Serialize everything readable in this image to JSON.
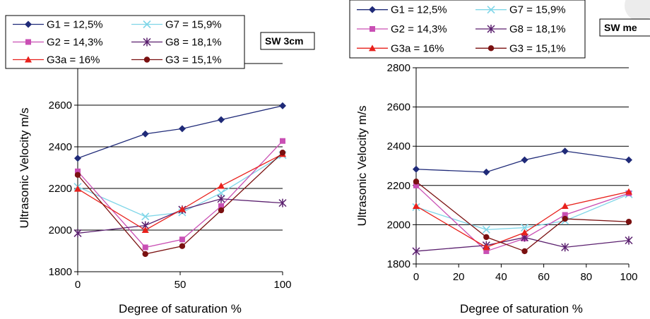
{
  "colors": {
    "G1": "#1f2a78",
    "G2": "#c94fb4",
    "G3a": "#e8211c",
    "G7": "#7fd6e8",
    "G8": "#5a1f6e",
    "G3": "#7a1010"
  },
  "chart_data": [
    {
      "type": "line",
      "tag": "SW 3cm",
      "xlabel": "Degree of saturation %",
      "ylabel": "Ultrasonic Velocity m/s",
      "xlim": [
        0,
        100
      ],
      "ylim": [
        1800,
        2800
      ],
      "xticks": [
        0,
        50,
        100
      ],
      "yticks": [
        1800,
        2000,
        2200,
        2400,
        2600
      ],
      "legend_position": "top-left",
      "grid": "horizontal",
      "series": [
        {
          "name": "G1 = 12,5%",
          "marker": "diamond",
          "color_key": "G1",
          "x": [
            0,
            33,
            51,
            70,
            100
          ],
          "y": [
            2345,
            2462,
            2487,
            2530,
            2597
          ]
        },
        {
          "name": "G7 = 15,9%",
          "marker": "x",
          "color_key": "G7",
          "x": [
            0,
            33,
            51,
            70,
            100
          ],
          "y": [
            2208,
            2065,
            2085,
            2178,
            2360
          ]
        },
        {
          "name": "G2 = 14,3%",
          "marker": "square",
          "color_key": "G2",
          "x": [
            0,
            33,
            51,
            70,
            100
          ],
          "y": [
            2282,
            1917,
            1955,
            2115,
            2428
          ]
        },
        {
          "name": "G8 = 18,1%",
          "marker": "star",
          "color_key": "G8",
          "x": [
            0,
            33,
            51,
            70,
            100
          ],
          "y": [
            1985,
            2022,
            2098,
            2150,
            2130
          ]
        },
        {
          "name": "G3a = 16%",
          "marker": "triangle",
          "color_key": "G3a",
          "x": [
            0,
            33,
            51,
            70,
            100
          ],
          "y": [
            2198,
            2000,
            2100,
            2212,
            2365
          ]
        },
        {
          "name": "G3 = 15,1%",
          "marker": "circle",
          "color_key": "G3",
          "x": [
            0,
            33,
            51,
            70,
            100
          ],
          "y": [
            2265,
            1885,
            1923,
            2095,
            2372
          ]
        }
      ]
    },
    {
      "type": "line",
      "tag": "SW me",
      "xlabel": "Degree of saturation %",
      "ylabel": "Ultrasonic Velocity m/s",
      "xlim": [
        0,
        100
      ],
      "ylim": [
        1800,
        2800
      ],
      "xticks": [
        0,
        20,
        40,
        60,
        80,
        100
      ],
      "yticks": [
        1800,
        2000,
        2200,
        2400,
        2600,
        2800
      ],
      "legend_position": "top-left",
      "grid": "horizontal",
      "series": [
        {
          "name": "G1 = 12,5%",
          "marker": "diamond",
          "color_key": "G1",
          "x": [
            0,
            33,
            51,
            70,
            100
          ],
          "y": [
            2283,
            2268,
            2330,
            2375,
            2330
          ]
        },
        {
          "name": "G7 = 15,9%",
          "marker": "x",
          "color_key": "G7",
          "x": [
            0,
            33,
            51,
            70,
            100
          ],
          "y": [
            2090,
            1975,
            1985,
            2020,
            2155
          ]
        },
        {
          "name": "G2 = 14,3%",
          "marker": "square",
          "color_key": "G2",
          "x": [
            0,
            33,
            51,
            70,
            100
          ],
          "y": [
            2200,
            1865,
            1930,
            2050,
            2160
          ]
        },
        {
          "name": "G8 = 18,1%",
          "marker": "star",
          "color_key": "G8",
          "x": [
            0,
            33,
            51,
            70,
            100
          ],
          "y": [
            1865,
            1895,
            1935,
            1885,
            1920
          ]
        },
        {
          "name": "G3a = 16%",
          "marker": "triangle",
          "color_key": "G3a",
          "x": [
            0,
            33,
            51,
            70,
            100
          ],
          "y": [
            2095,
            1885,
            1960,
            2095,
            2168
          ]
        },
        {
          "name": "G3 = 15,1%",
          "marker": "circle",
          "color_key": "G3",
          "x": [
            0,
            33,
            51,
            70,
            100
          ],
          "y": [
            2220,
            1937,
            1865,
            2030,
            2015
          ]
        }
      ]
    }
  ]
}
